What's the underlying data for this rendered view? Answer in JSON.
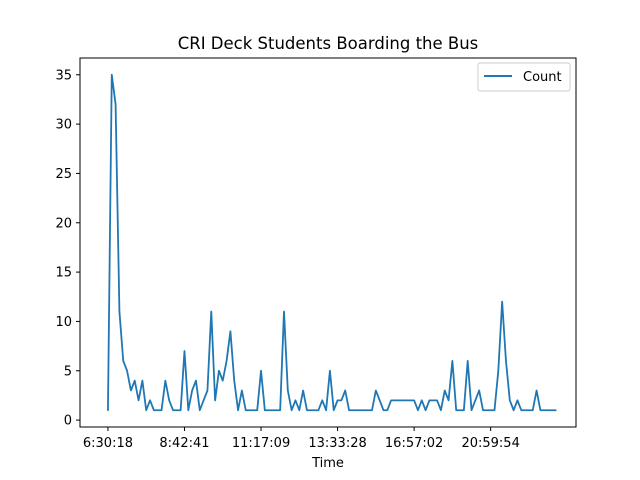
{
  "chart_data": {
    "type": "line",
    "title": "CRI Deck Students Boarding the Bus",
    "xlabel": "Time",
    "ylabel": "",
    "x_tick_labels": [
      "6:30:18",
      "8:42:41",
      "11:17:09",
      "13:33:28",
      "16:57:02",
      "20:59:54"
    ],
    "x_tick_index": [
      0,
      20,
      40,
      60,
      80,
      100
    ],
    "y_ticks": [
      0,
      5,
      10,
      15,
      20,
      25,
      30,
      35
    ],
    "ylim": [
      -0.7,
      36.7
    ],
    "xlim": [
      -7.3,
      122.3
    ],
    "grid": false,
    "legend_position": "top-right",
    "series": [
      {
        "name": "Count",
        "color": "#1f77b4",
        "values": [
          1,
          35,
          32,
          11,
          6,
          5,
          3,
          4,
          2,
          4,
          1,
          2,
          1,
          1,
          1,
          4,
          2,
          1,
          1,
          1,
          7,
          1,
          3,
          4,
          1,
          2,
          3,
          11,
          2,
          5,
          4,
          6,
          9,
          4,
          1,
          3,
          1,
          1,
          1,
          1,
          5,
          1,
          1,
          1,
          1,
          1,
          11,
          3,
          1,
          2,
          1,
          3,
          1,
          1,
          1,
          1,
          2,
          1,
          5,
          1,
          2,
          2,
          3,
          1,
          1,
          1,
          1,
          1,
          1,
          1,
          3,
          2,
          1,
          1,
          2,
          2,
          2,
          2,
          2,
          2,
          2,
          1,
          2,
          1,
          2,
          2,
          2,
          1,
          3,
          2,
          6,
          1,
          1,
          1,
          6,
          1,
          2,
          3,
          1,
          1,
          1,
          1,
          5,
          12,
          6,
          2,
          1,
          2,
          1,
          1,
          1,
          1,
          3,
          1,
          1,
          1,
          1,
          1
        ]
      }
    ]
  }
}
